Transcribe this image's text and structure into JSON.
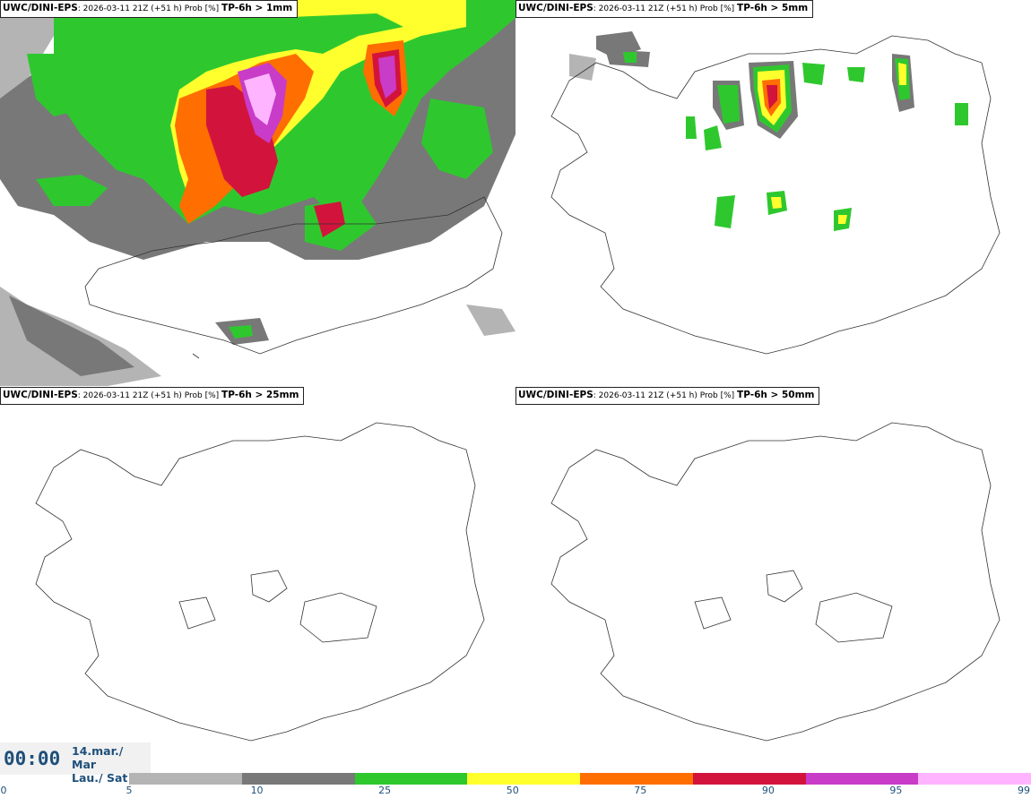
{
  "panels": [
    {
      "model": "UWC/DINI-EPS",
      "meta": ": 2026-03-11 21Z (+51 h) Prob [%] ",
      "param": "TP-6h > 1mm"
    },
    {
      "model": "UWC/DINI-EPS",
      "meta": ": 2026-03-11 21Z (+51 h) Prob [%] ",
      "param": "TP-6h > 5mm"
    },
    {
      "model": "UWC/DINI-EPS",
      "meta": ": 2026-03-11 21Z (+51 h) Prob [%] ",
      "param": "TP-6h > 25mm"
    },
    {
      "model": "UWC/DINI-EPS",
      "meta": ": 2026-03-11 21Z (+51 h) Prob [%] ",
      "param": "TP-6h > 50mm"
    }
  ],
  "valid_time": {
    "time": "00:00",
    "date_line1": "14.mar./ Mar",
    "date_line2": "Lau./ Sat"
  },
  "colorbar": {
    "ticks": [
      "0",
      "5",
      "10",
      "25",
      "50",
      "75",
      "90",
      "95",
      "99"
    ],
    "colors": [
      "#b4b4b4",
      "#787878",
      "#2ec82e",
      "#ffff2d",
      "#ff6e00",
      "#d2143c",
      "#c83cc8",
      "#ffb4ff"
    ]
  }
}
